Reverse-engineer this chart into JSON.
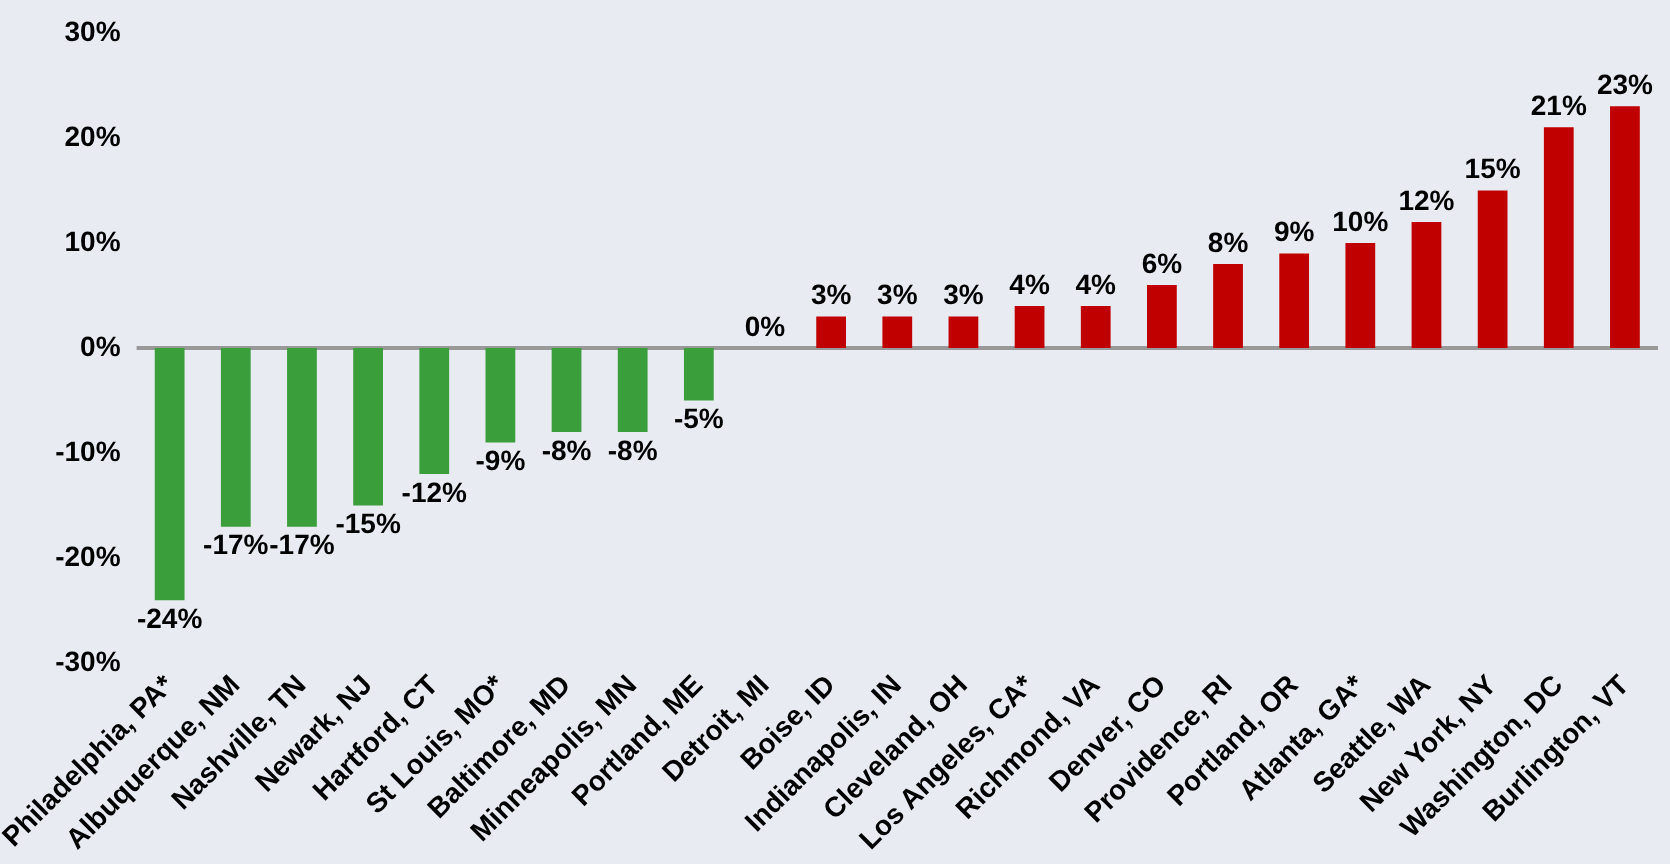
{
  "chart_data": {
    "type": "bar",
    "categories": [
      "Philadelphia, PA*",
      "Albuquerque, NM",
      "Nashville, TN",
      "Newark, NJ",
      "Hartford, CT",
      "St Louis, MO*",
      "Baltimore, MD",
      "Minneapolis, MN",
      "Portland, ME",
      "Detroit, MI",
      "Boise, ID",
      "Indianapolis, IN",
      "Cleveland, OH",
      "Los Angeles, CA*",
      "Richmond, VA",
      "Denver, CO",
      "Providence, RI",
      "Portland, OR",
      "Atlanta, GA*",
      "Seattle, WA",
      "New York, NY",
      "Washington, DC",
      "Burlington, VT"
    ],
    "values": [
      -24,
      -17,
      -17,
      -15,
      -12,
      -9,
      -8,
      -8,
      -5,
      0,
      3,
      3,
      3,
      4,
      4,
      6,
      8,
      9,
      10,
      12,
      15,
      21,
      23
    ],
    "colors": [
      "#3a9e3a",
      "#3a9e3a",
      "#3a9e3a",
      "#3a9e3a",
      "#3a9e3a",
      "#3a9e3a",
      "#3a9e3a",
      "#3a9e3a",
      "#3a9e3a",
      "#c00000",
      "#c00000",
      "#c00000",
      "#c00000",
      "#c00000",
      "#c00000",
      "#c00000",
      "#c00000",
      "#c00000",
      "#c00000",
      "#c00000",
      "#c00000",
      "#c00000",
      "#c00000"
    ],
    "value_labels": [
      "-24%",
      "-17%",
      "-17%",
      "-15%",
      "-12%",
      "-9%",
      "-8%",
      "-8%",
      "-5%",
      "0%",
      "3%",
      "3%",
      "3%",
      "4%",
      "4%",
      "6%",
      "8%",
      "9%",
      "10%",
      "12%",
      "15%",
      "21%",
      "23%"
    ],
    "ylim": [
      -30,
      30
    ],
    "yticks": [
      {
        "value": -30,
        "label": "-30%"
      },
      {
        "value": -20,
        "label": "-20%"
      },
      {
        "value": -10,
        "label": "-10%"
      },
      {
        "value": 0,
        "label": "0%"
      },
      {
        "value": 10,
        "label": "10%"
      },
      {
        "value": 20,
        "label": "20%"
      },
      {
        "value": 30,
        "label": "30%"
      }
    ],
    "ref_lines": [
      {
        "axis": "y",
        "value": 0,
        "color": "#999999"
      }
    ],
    "grid": false,
    "legend": false
  }
}
